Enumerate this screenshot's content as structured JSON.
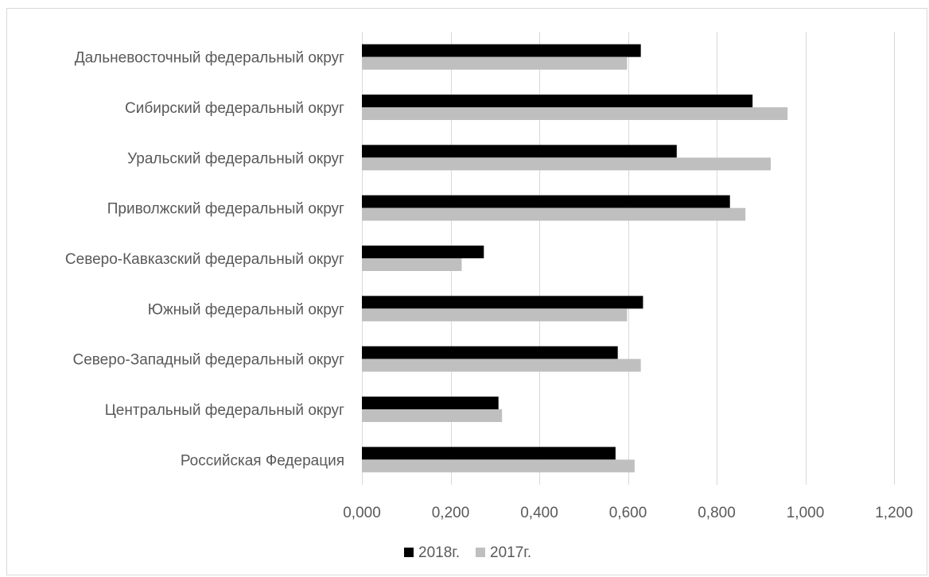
{
  "chart_data": {
    "type": "bar",
    "orientation": "horizontal",
    "categories": [
      "Российская Федерация",
      "Центральный федеральный округ",
      "Северо-Западный федеральный округ",
      "Южный федеральный округ",
      "Северо-Кавказский федеральный округ",
      "Приволжский федеральный округ",
      "Уральский федеральный округ",
      "Сибирский федеральный округ",
      "Дальневосточный федеральный округ"
    ],
    "series": [
      {
        "name": "2018г.",
        "color": "#000000",
        "values": [
          0.572,
          0.308,
          0.577,
          0.634,
          0.275,
          0.83,
          0.71,
          0.881,
          0.629
        ]
      },
      {
        "name": "2017г.",
        "color": "#bfbfbf",
        "values": [
          0.615,
          0.316,
          0.629,
          0.598,
          0.225,
          0.865,
          0.922,
          0.96,
          0.598
        ]
      }
    ],
    "xlim": [
      0,
      1.2
    ],
    "xticks": [
      "0,000",
      "0,200",
      "0,400",
      "0,600",
      "0,800",
      "1,000",
      "1,200"
    ],
    "title": "",
    "xlabel": "",
    "ylabel": "",
    "grid": "vertical",
    "legend_position": "bottom"
  }
}
